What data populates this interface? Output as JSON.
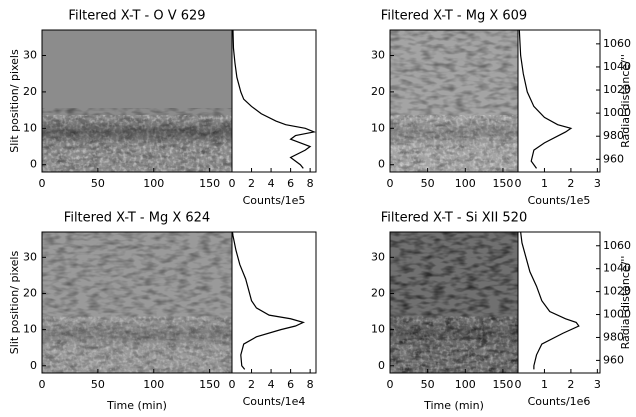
{
  "chart_data": [
    {
      "type": "heatmap",
      "title": "Filtered X-T - O V 629",
      "ylabel": "Slit position/ pixels",
      "xlim": [
        0,
        170
      ],
      "xticks": [
        0,
        50,
        100,
        150
      ],
      "ylim": [
        -2,
        37
      ],
      "yticks": [
        0,
        10,
        20,
        30
      ]
    },
    {
      "type": "line",
      "xlabel": "Counts/1e5",
      "xlim": [
        0,
        8.6
      ],
      "xticks": [
        0,
        2,
        4,
        6,
        8
      ],
      "ylim": [
        -2,
        37
      ],
      "series": [
        {
          "color": "#000000",
          "y": [
            -1,
            0,
            2,
            4,
            5,
            7,
            8,
            9,
            10,
            11,
            12,
            14,
            16,
            18,
            20,
            24,
            28,
            32,
            37
          ],
          "values": [
            7.3,
            7.0,
            6.0,
            7.5,
            8.0,
            6.0,
            6.5,
            8.4,
            7.5,
            5.5,
            4.5,
            3.0,
            2.0,
            1.2,
            0.9,
            0.5,
            0.3,
            0.15,
            0.1
          ]
        }
      ]
    },
    {
      "type": "heatmap",
      "title": "Filtered X-T - Mg X 609",
      "xlim": [
        0,
        170
      ],
      "xticks": [
        0,
        50,
        100,
        150
      ],
      "ylim": [
        -2,
        37
      ],
      "yticks": [
        0,
        10,
        20,
        30
      ]
    },
    {
      "type": "line",
      "xlabel": "Counts/1e5",
      "xlim": [
        0,
        3.1
      ],
      "xticks": [
        0,
        1,
        2,
        3
      ],
      "ylim": [
        -2,
        37
      ],
      "y2label": "Radial distance/''",
      "y2lim": [
        949,
        1072
      ],
      "y2ticks": [
        960,
        980,
        1000,
        1020,
        1040,
        1060
      ],
      "series": [
        {
          "color": "#000000",
          "y": [
            -1,
            1,
            4,
            6,
            9,
            10,
            11,
            13,
            16,
            20,
            25,
            30,
            37
          ],
          "values": [
            0.7,
            0.5,
            0.6,
            1.0,
            1.8,
            2.0,
            1.5,
            1.0,
            0.6,
            0.35,
            0.2,
            0.1,
            0.05
          ]
        }
      ]
    },
    {
      "type": "heatmap",
      "title": "Filtered X-T - Mg X 624",
      "ylabel": "Slit position/ pixels",
      "xlabel": "Time (min)",
      "xlim": [
        0,
        170
      ],
      "xticks": [
        0,
        50,
        100,
        150
      ],
      "ylim": [
        -2,
        37
      ],
      "yticks": [
        0,
        10,
        20,
        30
      ]
    },
    {
      "type": "line",
      "xlabel": "Counts/1e4",
      "xlim": [
        0,
        8.6
      ],
      "xticks": [
        0,
        2,
        4,
        6,
        8
      ],
      "ylim": [
        -2,
        37
      ],
      "series": [
        {
          "color": "#000000",
          "y": [
            -1,
            0,
            3,
            6,
            8,
            10,
            11,
            12,
            13,
            14,
            16,
            18,
            20,
            24,
            28,
            32,
            36,
            37
          ],
          "values": [
            1.3,
            1.0,
            0.9,
            1.2,
            2.5,
            5.0,
            6.5,
            7.3,
            6.0,
            3.8,
            2.5,
            2.0,
            1.8,
            1.4,
            0.8,
            0.4,
            0.1,
            0.05
          ]
        }
      ]
    },
    {
      "type": "heatmap",
      "title": "Filtered X-T - Si XII 520",
      "xlabel": "Time (min)",
      "xlim": [
        0,
        170
      ],
      "xticks": [
        0,
        50,
        100,
        150
      ],
      "ylim": [
        -2,
        37
      ],
      "yticks": [
        0,
        10,
        20,
        30
      ]
    },
    {
      "type": "line",
      "xlabel": "Counts/1e6",
      "xlim": [
        0,
        3.1
      ],
      "xticks": [
        0,
        1,
        2,
        3
      ],
      "ylim": [
        -2,
        37
      ],
      "y2label": "Radial distance/''",
      "y2lim": [
        949,
        1072
      ],
      "y2ticks": [
        960,
        980,
        1000,
        1020,
        1040,
        1060
      ],
      "series": [
        {
          "color": "#000000",
          "y": [
            -1,
            0,
            3,
            6,
            9,
            11,
            12,
            13,
            15,
            18,
            22,
            26,
            30,
            34,
            37
          ],
          "values": [
            0.6,
            0.6,
            0.7,
            0.9,
            1.7,
            2.3,
            2.2,
            1.8,
            1.2,
            0.9,
            0.7,
            0.45,
            0.3,
            0.15,
            0.1
          ]
        }
      ]
    }
  ]
}
